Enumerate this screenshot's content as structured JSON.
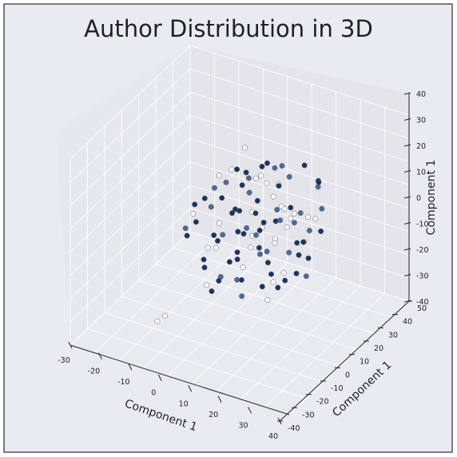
{
  "chart_data": {
    "type": "scatter",
    "projection": "3d",
    "title": "Author Distribution in 3D",
    "xlabel": "Component 1",
    "ylabel": "Component 1",
    "zlabel": "Component 1",
    "xlim": [
      -30,
      40
    ],
    "ylim": [
      -40,
      50
    ],
    "zlim": [
      -40,
      40
    ],
    "xticks": [
      -30,
      -20,
      -10,
      0,
      10,
      20,
      30,
      40
    ],
    "yticks": [
      -40,
      -30,
      -20,
      -10,
      0,
      10,
      20,
      30,
      40,
      50
    ],
    "zticks": [
      -40,
      -30,
      -20,
      -10,
      0,
      10,
      20,
      30,
      40
    ],
    "grid": true,
    "colors": {
      "background": "#eaeaf2",
      "pane_left": "#e7e7ee",
      "pane_back": "#e4e4ea",
      "pane_floor": "#e9e9f0",
      "grid": "#ffffff",
      "dark_point": "#1a3460",
      "mid_point": "#4a6a9a",
      "light_point": "#ffffff",
      "edge": "#555555"
    },
    "series": [
      {
        "values": [
          [
            1.2,
            2.5,
            5.9,
            0.78
          ],
          [
            4.8,
            -3.1,
            2.4,
            0.31
          ],
          [
            -6.3,
            7.7,
            -11.2,
            0.92
          ],
          [
            11.5,
            1.4,
            -3.8,
            0.06
          ],
          [
            -2.7,
            -14.6,
            8.5,
            0.65
          ],
          [
            7.9,
            10.3,
            14.1,
            0.44
          ],
          [
            -12.4,
            -5.2,
            -1.6,
            0.87
          ],
          [
            3.3,
            16.8,
            -7.3,
            0.12
          ],
          [
            15.2,
            -8.9,
            9.6,
            0.58
          ],
          [
            -9.1,
            3.6,
            19.4,
            0.23
          ],
          [
            0.6,
            -19.3,
            -14.8,
            0.71
          ],
          [
            18.7,
            5.1,
            1.9,
            0.95
          ],
          [
            -16.2,
            12.6,
            -4.7,
            0.37
          ],
          [
            6.4,
            -11.7,
            -18.2,
            0.03
          ],
          [
            -4.5,
            20.1,
            11.8,
            0.82
          ],
          [
            13.9,
            13.2,
            -12.6,
            0.49
          ],
          [
            -14.8,
            -13.4,
            13.5,
            0.19
          ],
          [
            9.6,
            -2.2,
            21.7,
            0.67
          ],
          [
            -1.8,
            8.4,
            -21.9,
            0.88
          ],
          [
            20.9,
            -15.5,
            -6.4,
            0.14
          ],
          [
            -19.6,
            1.9,
            6.8,
            0.53
          ],
          [
            2.1,
            -6.8,
            16.3,
            0.99
          ],
          [
            -7.7,
            -9.6,
            -9.5,
            0.28
          ],
          [
            16.6,
            19.1,
            4.2,
            0.61
          ],
          [
            -11.3,
            17.2,
            -16.1,
            0.41
          ],
          [
            10.4,
            -18.2,
            12.7,
            0.76
          ],
          [
            -3.2,
            0.9,
            -1.1,
            0.09
          ],
          [
            5.7,
            4.6,
            8.9,
            0.35
          ],
          [
            -8.6,
            -2.7,
            3.3,
            0.84
          ],
          [
            12.8,
            7.3,
            -15.4,
            0.57
          ],
          [
            -5.9,
            13.8,
            15.6,
            0.22
          ],
          [
            1.9,
            -13.1,
            -5.8,
            0.69
          ],
          [
            17.4,
            -0.6,
            17.8,
            0.47
          ],
          [
            -13.7,
            -8.3,
            -13.7,
            0.93
          ],
          [
            7.2,
            21.4,
            -0.4,
            0.16
          ],
          [
            -17.9,
            6.7,
            10.2,
            0.72
          ],
          [
            4.2,
            -20.6,
            2.8,
            0.38
          ],
          [
            14.5,
            11.9,
            -19.3,
            0.85
          ],
          [
            -10.2,
            -16.8,
            17.2,
            0.07
          ],
          [
            0.3,
            15.3,
            -8.7,
            0.63
          ],
          [
            19.8,
            3.2,
            -10.9,
            0.29
          ],
          [
            -6.8,
            -4.1,
            22.4,
            0.54
          ],
          [
            8.9,
            -9.2,
            -22.6,
            0.97
          ],
          [
            -15.5,
            18.4,
            0.6,
            0.11
          ],
          [
            11.7,
            -14.3,
            7.4,
            0.79
          ],
          [
            -2.3,
            -1.5,
            -16.9,
            0.43
          ],
          [
            6.1,
            9.8,
            19.7,
            0.66
          ],
          [
            -12.9,
            2.8,
            -7.9,
            0.25
          ],
          [
            15.9,
            16.5,
            10.8,
            0.89
          ],
          [
            -20.4,
            -10.9,
            -3.2,
            0.51
          ],
          [
            3.7,
            -17.4,
            -12.1,
            0.18
          ],
          [
            -4.9,
            22.3,
            5.5,
            0.74
          ],
          [
            10.9,
            -5.7,
            14.9,
            0.32
          ],
          [
            -9.8,
            10.9,
            -19.8,
            0.96
          ],
          [
            21.6,
            8.1,
            -2.1,
            0.45
          ],
          [
            -0.9,
            -11.8,
            11.1,
            0.02
          ],
          [
            13.1,
            0.4,
            -14.2,
            0.68
          ],
          [
            -16.8,
            -6.3,
            16.4,
            0.39
          ],
          [
            5.3,
            17.9,
            -11.7,
            0.83
          ],
          [
            -7.3,
            -19.7,
            -0.9,
            0.27
          ],
          [
            18.1,
            -12.6,
            4.6,
            0.59
          ],
          [
            -11.8,
            14.7,
            20.5,
            0.91
          ],
          [
            2.6,
            5.9,
            -23.4,
            0.13
          ],
          [
            9.3,
            -16.1,
            -8.3,
            0.77
          ],
          [
            -14.3,
            9.4,
            12.4,
            0.34
          ],
          [
            16.3,
            -3.8,
            -17.6,
            0.62
          ],
          [
            -3.8,
            -7.2,
            7.1,
            0.86
          ],
          [
            7.6,
            12.2,
            -5.2,
            0.21
          ],
          [
            -18.7,
            -0.8,
            -11.4,
            0.55
          ],
          [
            12.2,
            -20.9,
            18.6,
            0.98
          ],
          [
            -5.4,
            4.3,
            -14.6,
            0.08
          ],
          [
            0.9,
            19.6,
            2.3,
            0.73
          ],
          [
            20.3,
            -7.4,
            13.2,
            0.46
          ],
          [
            -10.7,
            -12.2,
            -17.3,
            0.17
          ],
          [
            4.5,
            1.6,
            23.1,
            0.64
          ],
          [
            -8.2,
            16.1,
            -3.9,
            0.36
          ],
          [
            14.8,
            6.5,
            9.3,
            0.81
          ],
          [
            -1.5,
            -3.4,
            -20.7,
            0.24
          ],
          [
            11.1,
            -10.5,
            0.2,
            0.52
          ],
          [
            -13.2,
            21.1,
            8.1,
            0.94
          ],
          [
            6.8,
            -14.9,
            -13.8,
            0.05
          ],
          [
            -17.1,
            5.2,
            -6.7,
            0.71
          ],
          [
            17.9,
            14.4,
            16.9,
            0.42
          ],
          [
            -6.1,
            -18.3,
            4.9,
            0.87
          ],
          [
            2.8,
            10.7,
            -17.1,
            0.33
          ],
          [
            9.8,
            -1.2,
            6.3,
            0.58
          ],
          [
            -15.9,
            -4.6,
            -22.1,
            0.19
          ],
          [
            19.2,
            -18.8,
            -4.5,
            0.92
          ],
          [
            -2.9,
            7.9,
            18.3,
            0.49
          ],
          [
            8.2,
            3.7,
            -9.9,
            0.06
          ],
          [
            -11.1,
            -15.9,
            14.3,
            0.68
          ],
          [
            13.6,
            20.6,
            -1.6,
            0.29
          ],
          [
            -7.9,
            -0.3,
            -12.8,
            0.84
          ],
          [
            1.6,
            -8.7,
            21.2,
            0.41
          ],
          [
            15.5,
            9.1,
            -20.3,
            0.15
          ],
          [
            -19.3,
            13.3,
            3.7,
            0.76
          ],
          [
            5.9,
            -12.3,
            10.6,
            0.53
          ],
          [
            -4.1,
            2.2,
            -4.3,
            0.97
          ],
          [
            10.2,
            15.7,
            13.7,
            0.22
          ],
          [
            -14.6,
            -9.9,
            -8.9,
            0.63
          ]
        ]
      },
      {
        "values": [
          [
            -28.5,
            0.5,
            -16.2,
            1.0
          ],
          [
            26.0,
            21.0,
            -27.5,
            1.0
          ],
          [
            27.5,
            23.0,
            -29.5,
            1.0
          ],
          [
            2.0,
            -4.0,
            21.0,
            1.0
          ],
          [
            4.0,
            -1.0,
            23.5,
            1.0
          ],
          [
            -2.0,
            -6.0,
            18.5,
            1.0
          ]
        ]
      }
    ]
  }
}
